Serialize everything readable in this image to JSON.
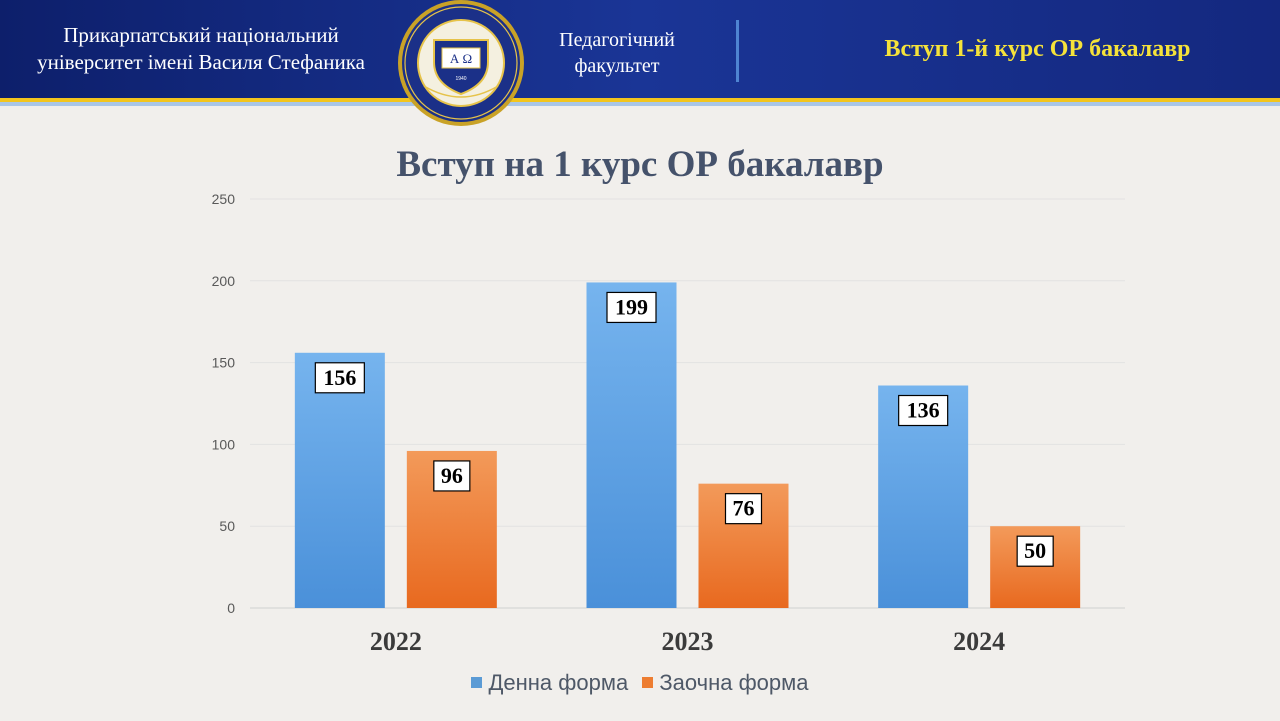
{
  "header": {
    "university_line1": "Прикарпатський національний",
    "university_line2": "університет імені Василя Стефаника",
    "faculty_line1": "Педагогічний",
    "faculty_line2": "факультет",
    "title": "Вступ 1-й курс ОР бакалавр",
    "logo_letters": "А Ω",
    "logo_year": "1940"
  },
  "colors": {
    "header_bg": "#14287f",
    "header_title": "#f5e23a",
    "stripe_gold": "#f3c51d",
    "series_day": "#5b9bd5",
    "series_extramural": "#ed7d31"
  },
  "chart_data": {
    "type": "bar",
    "title": "Вступ на 1 курс ОР бакалавр",
    "xlabel": "",
    "ylabel": "",
    "categories": [
      "2022",
      "2023",
      "2024"
    ],
    "ylim": [
      0,
      250
    ],
    "yticks": [
      0,
      50,
      100,
      150,
      200,
      250
    ],
    "grid": true,
    "legend_position": "bottom",
    "series": [
      {
        "name": "Денна форма",
        "values": [
          156,
          199,
          136
        ],
        "color": "#5b9bd5"
      },
      {
        "name": "Заочна форма",
        "values": [
          96,
          76,
          50
        ],
        "color": "#ed7d31"
      }
    ]
  }
}
